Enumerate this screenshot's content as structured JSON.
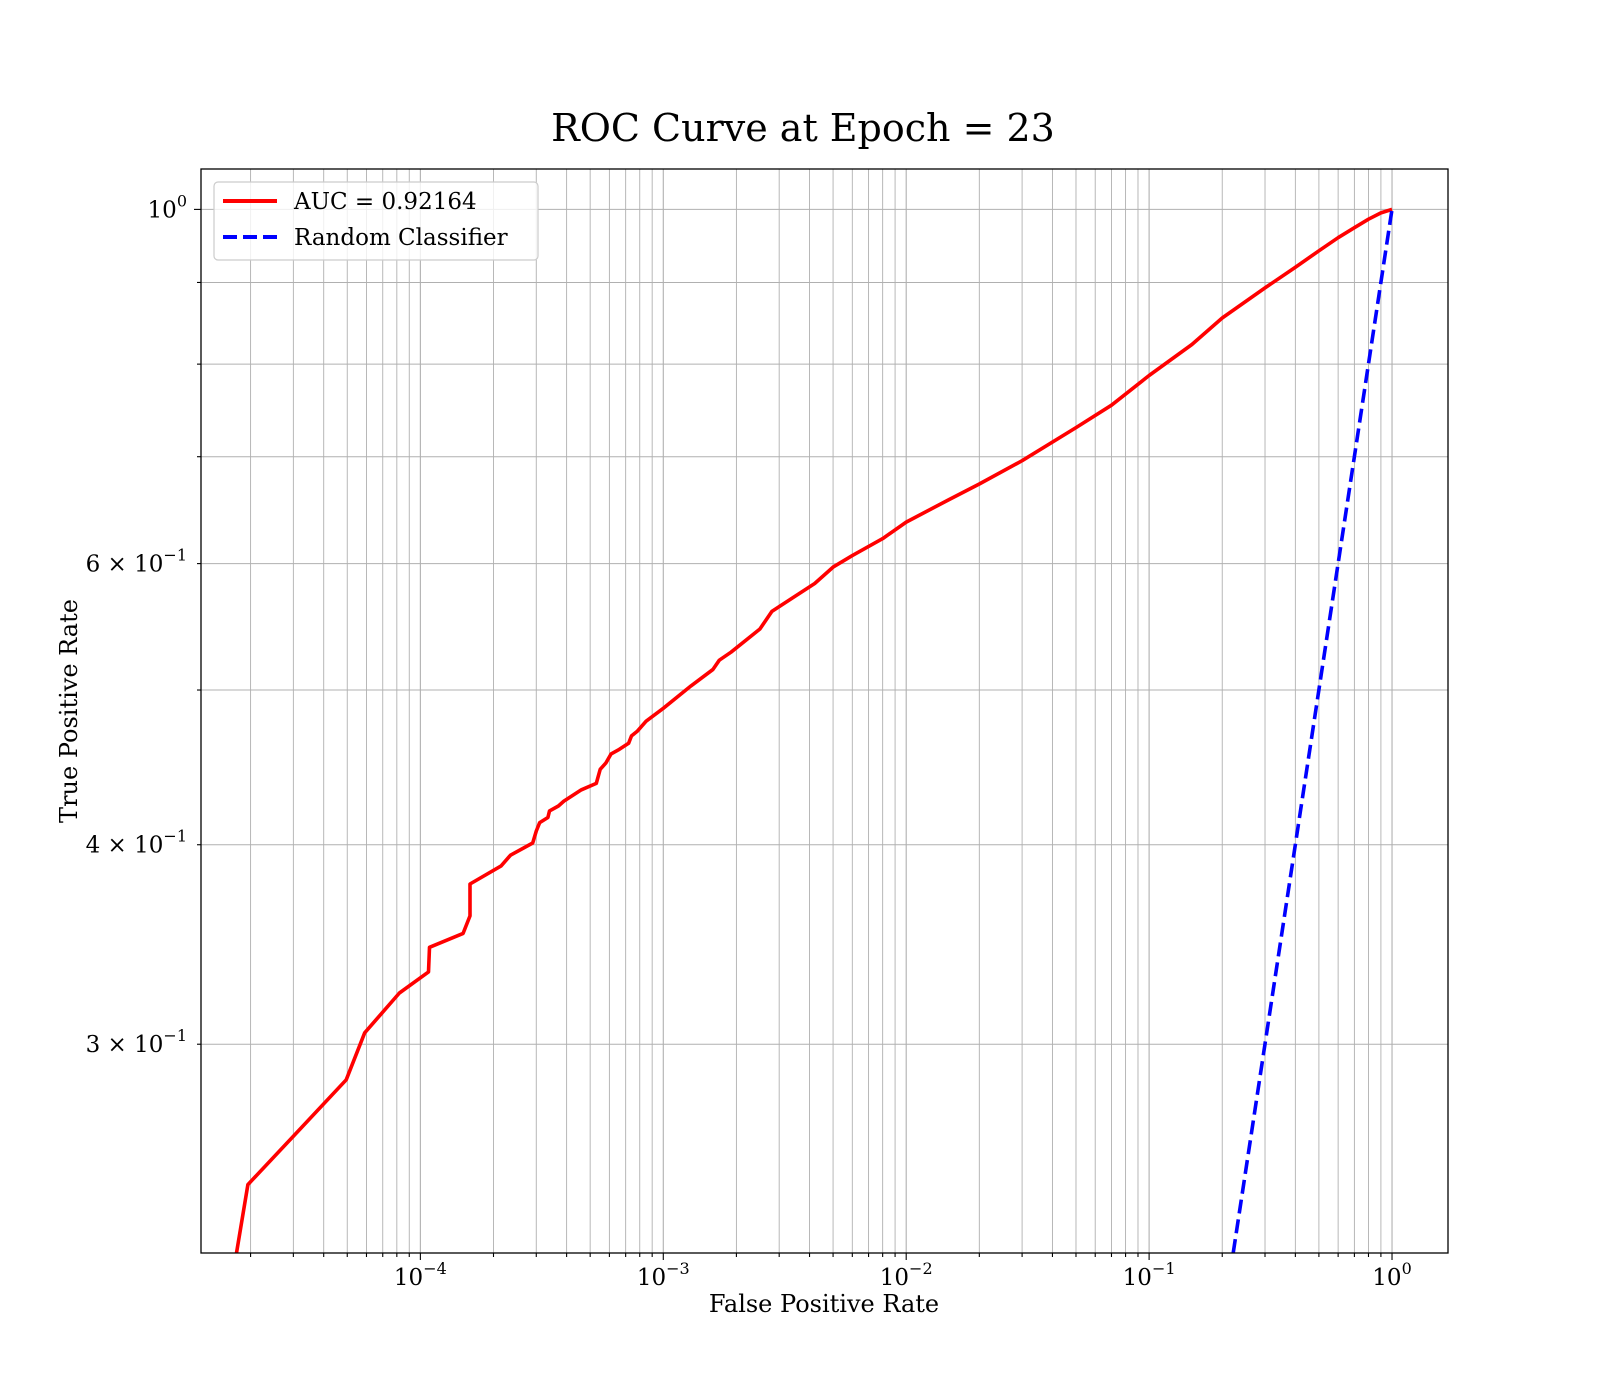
{
  "chart_data": {
    "type": "line",
    "title": "ROC Curve at Epoch = 23",
    "xlabel": "False Positive Rate",
    "ylabel": "True Positive Rate",
    "xscale": "log",
    "yscale": "log",
    "xlim": [
      1.25e-05,
      1.7
    ],
    "ylim": [
      0.222,
      1.06
    ],
    "grid": true,
    "legend_position": "upper-left",
    "x_ticks": [
      {
        "value": 0.0001,
        "base": "10",
        "exp": "−4"
      },
      {
        "value": 0.001,
        "base": "10",
        "exp": "−3"
      },
      {
        "value": 0.01,
        "base": "10",
        "exp": "−2"
      },
      {
        "value": 0.1,
        "base": "10",
        "exp": "−1"
      },
      {
        "value": 1,
        "base": "10",
        "exp": "0"
      }
    ],
    "y_ticks": [
      {
        "value": 1.0,
        "base": "10",
        "exp": "0"
      },
      {
        "value": 0.6,
        "base": "6 × 10",
        "exp": "−1"
      },
      {
        "value": 0.4,
        "base": "4 × 10",
        "exp": "−1"
      },
      {
        "value": 0.3,
        "base": "3 × 10",
        "exp": "−1"
      }
    ],
    "series": [
      {
        "name": "AUC = 0.92164",
        "color": "#ff0000",
        "dash": "solid",
        "x": [
          1.75e-05,
          1.95e-05,
          2.95e-05,
          4.95e-05,
          5.9e-05,
          8.2e-05,
          0.000108,
          0.000109,
          0.00015,
          0.00016,
          0.00016,
          0.000215,
          0.000235,
          0.00029,
          0.0003,
          0.00031,
          0.000335,
          0.00034,
          0.00037,
          0.00039,
          0.00046,
          0.00053,
          0.00055,
          0.00058,
          0.00061,
          0.00066,
          0.00072,
          0.00074,
          0.00078,
          0.00085,
          0.001,
          0.0013,
          0.0016,
          0.0017,
          0.0019,
          0.0025,
          0.0028,
          0.0034,
          0.0042,
          0.005,
          0.006,
          0.008,
          0.01,
          0.015,
          0.02,
          0.03,
          0.05,
          0.07,
          0.1,
          0.15,
          0.2,
          0.3,
          0.4,
          0.5,
          0.6,
          0.7,
          0.8,
          0.9,
          1.0
        ],
        "y": [
          0.222,
          0.245,
          0.262,
          0.285,
          0.305,
          0.323,
          0.333,
          0.345,
          0.352,
          0.361,
          0.378,
          0.388,
          0.394,
          0.401,
          0.408,
          0.413,
          0.416,
          0.42,
          0.423,
          0.426,
          0.433,
          0.437,
          0.446,
          0.45,
          0.456,
          0.459,
          0.463,
          0.468,
          0.471,
          0.478,
          0.487,
          0.503,
          0.515,
          0.522,
          0.528,
          0.546,
          0.56,
          0.571,
          0.583,
          0.597,
          0.607,
          0.622,
          0.637,
          0.658,
          0.673,
          0.696,
          0.73,
          0.754,
          0.787,
          0.823,
          0.855,
          0.893,
          0.92,
          0.942,
          0.96,
          0.974,
          0.986,
          0.995,
          1.0
        ]
      },
      {
        "name": "Random Classifier",
        "color": "#0000ff",
        "dash": "dashed",
        "x": [
          0.222,
          1.0
        ],
        "y": [
          0.222,
          1.0
        ]
      }
    ]
  }
}
